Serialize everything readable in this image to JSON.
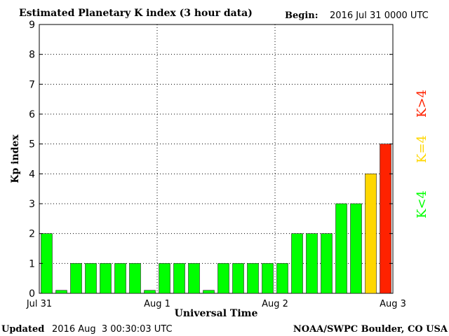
{
  "header": {
    "title": "Estimated Planetary K index (3 hour data)",
    "begin_label": "Begin:",
    "begin_value": "2016 Jul 31 0000 UTC"
  },
  "footer": {
    "updated_label": "Updated",
    "updated_value": "2016 Aug  3 00:30:03 UTC",
    "credit": "NOAA/SWPC Boulder, CO USA"
  },
  "legend": {
    "low": "K<4",
    "mid": "K=4",
    "high": "K>4"
  },
  "colors": {
    "low": "#00ff00",
    "mid": "#ffd700",
    "high": "#ff2200"
  },
  "chart_data": {
    "type": "bar",
    "title": "Estimated Planetary K index (3 hour data)",
    "xlabel": "Universal Time",
    "ylabel": "Kp index",
    "ylim": [
      0,
      9
    ],
    "yticks": [
      "0",
      "1",
      "2",
      "3",
      "4",
      "5",
      "6",
      "7",
      "8",
      "9"
    ],
    "xticks": [
      "Jul 31",
      "Aug 1",
      "Aug 2",
      "Aug 3"
    ],
    "grid": true,
    "values": [
      2,
      0,
      1,
      1,
      1,
      1,
      1,
      0,
      1,
      1,
      1,
      0,
      1,
      1,
      1,
      1,
      1,
      2,
      2,
      2,
      3,
      3,
      4,
      5
    ]
  }
}
